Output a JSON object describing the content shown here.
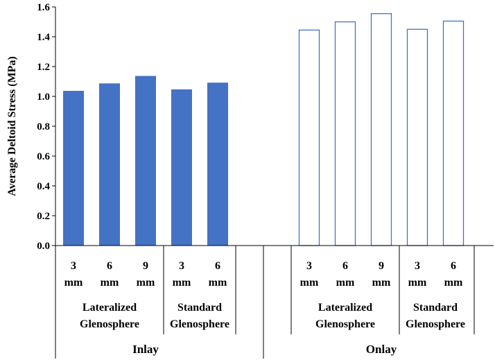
{
  "chart_data": {
    "type": "bar",
    "ylabel": "Average Deltoid Stress (MPa)",
    "ylim": [
      0,
      1.6
    ],
    "yticks": [
      "0.0",
      "0.2",
      "0.4",
      "0.6",
      "0.8",
      "1.0",
      "1.2",
      "1.4",
      "1.6"
    ],
    "grid": false,
    "fill_color": "#4472c4",
    "outline_color": "#4472c4",
    "groups": [
      {
        "label": "Inlay",
        "style": "filled",
        "subgroups": [
          {
            "label": [
              "Lateralized",
              "Glenosphere"
            ],
            "bars": [
              {
                "size": [
                  "3",
                  "mm"
                ],
                "value": 1.035
              },
              {
                "size": [
                  "6",
                  "mm"
                ],
                "value": 1.085
              },
              {
                "size": [
                  "9",
                  "mm"
                ],
                "value": 1.135
              }
            ]
          },
          {
            "label": [
              "Standard",
              "Glenosphere"
            ],
            "bars": [
              {
                "size": [
                  "3",
                  "mm"
                ],
                "value": 1.045
              },
              {
                "size": [
                  "6",
                  "mm"
                ],
                "value": 1.09
              }
            ]
          }
        ]
      },
      {
        "label": "Onlay",
        "style": "outline",
        "subgroups": [
          {
            "label": [
              "Lateralized",
              "Glenosphere"
            ],
            "bars": [
              {
                "size": [
                  "3",
                  "mm"
                ],
                "value": 1.445
              },
              {
                "size": [
                  "6",
                  "mm"
                ],
                "value": 1.5
              },
              {
                "size": [
                  "9",
                  "mm"
                ],
                "value": 1.555
              }
            ]
          },
          {
            "label": [
              "Standard",
              "Glenosphere"
            ],
            "bars": [
              {
                "size": [
                  "3",
                  "mm"
                ],
                "value": 1.45
              },
              {
                "size": [
                  "6",
                  "mm"
                ],
                "value": 1.505
              }
            ]
          }
        ]
      }
    ]
  }
}
